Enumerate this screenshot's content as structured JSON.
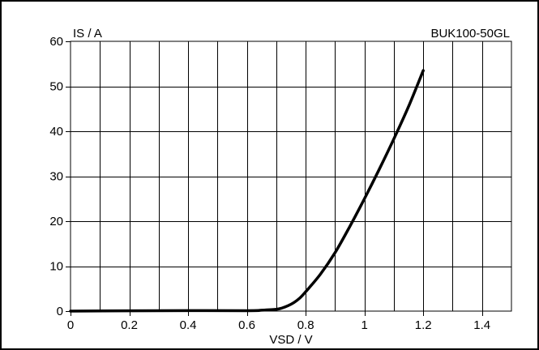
{
  "chart_data": {
    "type": "line",
    "ylabel": "IS / A",
    "xlabel": "VSD / V",
    "annotation": "BUK100-50GL",
    "xlim": [
      0,
      1.5
    ],
    "ylim": [
      0,
      60
    ],
    "xticks": [
      0,
      0.2,
      0.4,
      0.6,
      0.8,
      1,
      1.2,
      1.4
    ],
    "xtick_labels": [
      "0",
      "0.2",
      "0.4",
      "0.6",
      "0.8",
      "1",
      "1.2",
      "1.4"
    ],
    "yticks": [
      0,
      10,
      20,
      30,
      40,
      50,
      60
    ],
    "ytick_labels": [
      "0",
      "10",
      "20",
      "30",
      "40",
      "50",
      "60"
    ],
    "x_gridlines": [
      0.1,
      0.2,
      0.3,
      0.4,
      0.5,
      0.6,
      0.7,
      0.8,
      0.9,
      1.0,
      1.1,
      1.2,
      1.3,
      1.4
    ],
    "y_gridlines": [
      10,
      20,
      30,
      40,
      50
    ],
    "grid": true,
    "series": [
      {
        "x": [
          0,
          0.3,
          0.6,
          0.65,
          0.7,
          0.72,
          0.74,
          0.76,
          0.78,
          0.8,
          0.85,
          0.9,
          0.95,
          1.0,
          1.05,
          1.1,
          1.15,
          1.2
        ],
        "y": [
          0,
          0.1,
          0.1,
          0.2,
          0.4,
          0.7,
          1.2,
          1.9,
          2.9,
          4.3,
          8.2,
          13.0,
          18.8,
          25.0,
          31.5,
          38.3,
          45.5,
          53.5
        ]
      }
    ]
  }
}
